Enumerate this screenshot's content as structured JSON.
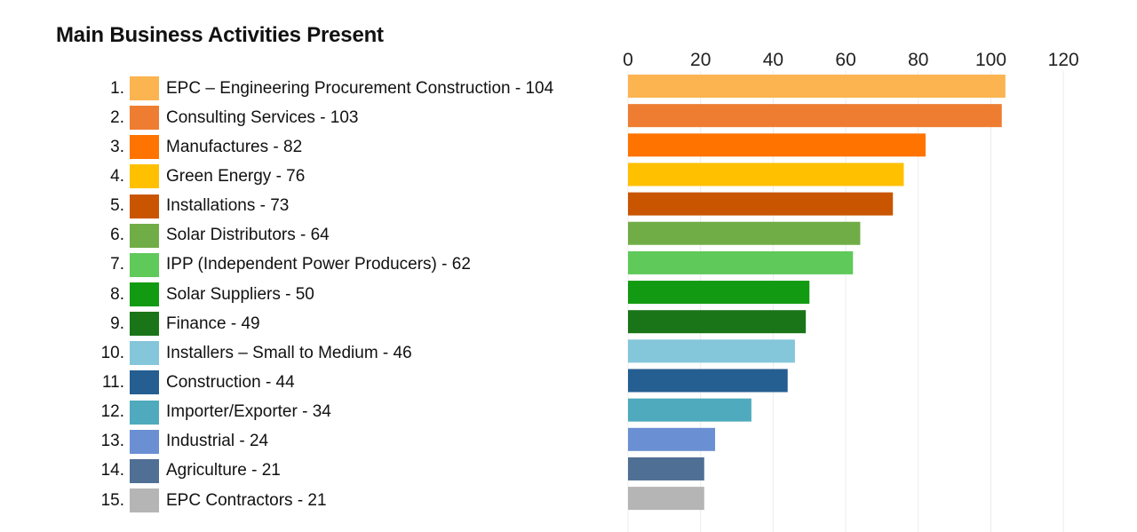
{
  "title": "Main Business Activities Present",
  "chart_data": {
    "type": "bar",
    "orientation": "horizontal",
    "title": "Main Business Activities Present",
    "xlim": [
      0,
      120
    ],
    "x_ticks": [
      0,
      20,
      40,
      60,
      80,
      100,
      120
    ],
    "x_axis_position": "top",
    "grid": true,
    "items": [
      {
        "num": "1.",
        "label": "EPC – Engineering Procurement Construction - 104",
        "category": "EPC – Engineering Procurement Construction",
        "value": 104,
        "color": "#FBB450"
      },
      {
        "num": "2.",
        "label": "Consulting Services - 103",
        "category": "Consulting Services",
        "value": 103,
        "color": "#EE7D31"
      },
      {
        "num": "3.",
        "label": "Manufactures - 82",
        "category": "Manufactures",
        "value": 82,
        "color": "#FF7300"
      },
      {
        "num": "4.",
        "label": "Green Energy - 76",
        "category": "Green Energy",
        "value": 76,
        "color": "#FFC000"
      },
      {
        "num": "5.",
        "label": "Installations - 73",
        "category": "Installations",
        "value": 73,
        "color": "#C95500"
      },
      {
        "num": "6.",
        "label": "Solar Distributors - 64",
        "category": "Solar Distributors",
        "value": 64,
        "color": "#70AD47"
      },
      {
        "num": "7.",
        "label": "IPP (Independent Power Producers) - 62",
        "category": "IPP (Independent Power Producers)",
        "value": 62,
        "color": "#5FC95A"
      },
      {
        "num": "8.",
        "label": "Solar Suppliers - 50",
        "category": "Solar Suppliers",
        "value": 50,
        "color": "#129B12"
      },
      {
        "num": "9.",
        "label": "Finance - 49",
        "category": "Finance",
        "value": 49,
        "color": "#1A7518"
      },
      {
        "num": "10.",
        "label": "Installers – Small to Medium - 46",
        "category": "Installers – Small to Medium",
        "value": 46,
        "color": "#84C6DA"
      },
      {
        "num": "11.",
        "label": "Construction - 44",
        "category": "Construction",
        "value": 44,
        "color": "#255E91"
      },
      {
        "num": "12.",
        "label": "Importer/Exporter - 34",
        "category": "Importer/Exporter",
        "value": 34,
        "color": "#4FAABD"
      },
      {
        "num": "13.",
        "label": "Industrial - 24",
        "category": "Industrial",
        "value": 24,
        "color": "#6A8FD3"
      },
      {
        "num": "14.",
        "label": "Agriculture - 21",
        "category": "Agriculture",
        "value": 21,
        "color": "#506F94"
      },
      {
        "num": "15.",
        "label": "EPC Contractors - 21",
        "category": "EPC Contractors",
        "value": 21,
        "color": "#B5B5B5"
      }
    ]
  }
}
